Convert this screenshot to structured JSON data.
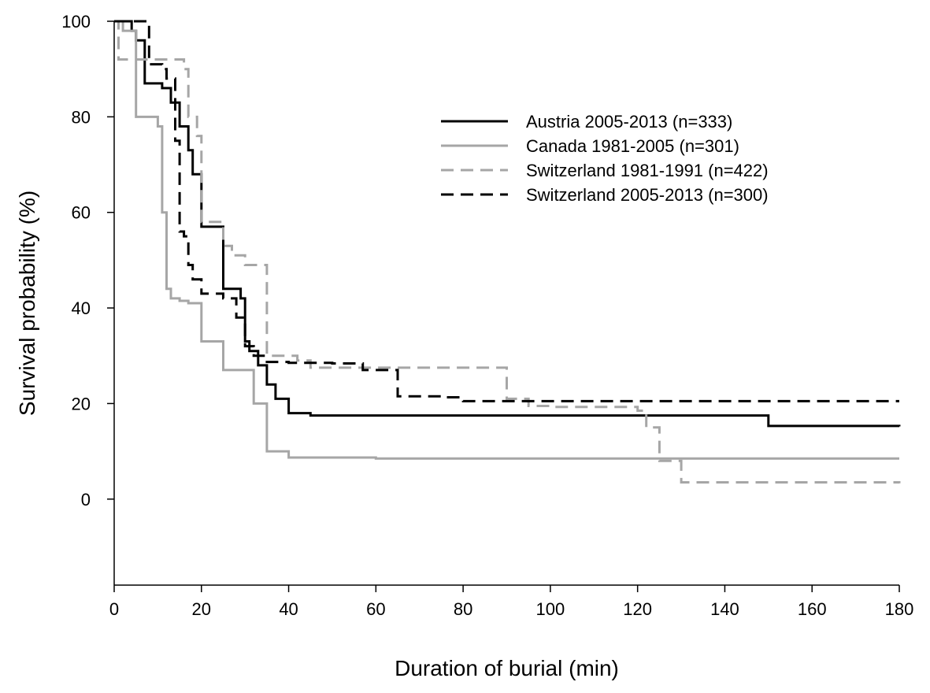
{
  "chart_data": {
    "type": "line",
    "step": true,
    "xlabel": "Duration of burial (min)",
    "ylabel": "Survival probability (%)",
    "xlim": [
      0,
      180
    ],
    "ylim": [
      -18,
      100
    ],
    "xticks": [
      0,
      20,
      40,
      60,
      80,
      100,
      120,
      140,
      160,
      180
    ],
    "yticks": [
      0,
      20,
      40,
      60,
      80,
      100
    ],
    "grid": false,
    "legend_position": "top-right",
    "series": [
      {
        "name": "Austria 2005-2013 (n=333)",
        "color": "#000000",
        "dash": "solid",
        "x": [
          0,
          3,
          4,
          5,
          7,
          10,
          11,
          12,
          13,
          15,
          17,
          18,
          20,
          23,
          25,
          28,
          29,
          30,
          31,
          33,
          35,
          37,
          40,
          45,
          60,
          80,
          100,
          120,
          150,
          180
        ],
        "y": [
          100,
          100,
          98,
          96,
          87,
          87,
          86,
          86,
          83,
          78,
          73,
          68,
          57,
          57,
          44,
          44,
          42,
          33,
          31,
          28,
          24,
          21,
          18,
          17.5,
          17.5,
          17.5,
          17.5,
          17.5,
          15.3,
          15.2
        ]
      },
      {
        "name": "Canada 1981-2005 (n=301)",
        "color": "#a6a6a6",
        "dash": "solid",
        "x": [
          0,
          2,
          3,
          4,
          5,
          9,
          10,
          11,
          12,
          13,
          15,
          17,
          18,
          20,
          23,
          25,
          28,
          30,
          32,
          35,
          40,
          60,
          100,
          140,
          180
        ],
        "y": [
          100,
          98,
          98,
          98,
          80,
          80,
          78,
          60,
          44,
          42,
          41.5,
          41,
          41,
          33,
          33,
          27,
          27,
          27,
          20,
          10,
          8.7,
          8.5,
          8.5,
          8.5,
          8.5
        ]
      },
      {
        "name": "Switzerland 1981-1991 (n=422)",
        "color": "#a6a6a6",
        "dash": "dashed",
        "x": [
          0,
          1,
          2,
          5,
          8,
          10,
          12,
          15,
          16,
          17,
          18,
          19,
          20,
          22,
          25,
          27,
          30,
          35,
          42,
          45,
          58,
          88,
          90,
          95,
          100,
          120,
          122,
          125,
          130,
          180
        ],
        "y": [
          100,
          92,
          92,
          92,
          92,
          92,
          92,
          92,
          90,
          80,
          80,
          76,
          58,
          58,
          53,
          51,
          49,
          30,
          29,
          27.5,
          27.5,
          27.5,
          21,
          19.5,
          19.3,
          18.5,
          15,
          8,
          3.5,
          3.3
        ]
      },
      {
        "name": "Switzerland 2005-2013 (n=300)",
        "color": "#000000",
        "dash": "dashed",
        "x": [
          0,
          5,
          7,
          8,
          10,
          11,
          12,
          14,
          15,
          16,
          17,
          18,
          20,
          25,
          28,
          30,
          32,
          35,
          40,
          50,
          57,
          60,
          65,
          75,
          80,
          100,
          180
        ],
        "y": [
          100,
          100,
          100,
          91,
          91,
          90,
          88,
          75,
          56,
          55,
          49,
          46,
          43,
          42,
          38,
          32,
          30,
          28.7,
          28.5,
          28.4,
          27,
          27,
          21.5,
          21.3,
          20.5,
          20.5,
          20.5
        ]
      }
    ]
  }
}
